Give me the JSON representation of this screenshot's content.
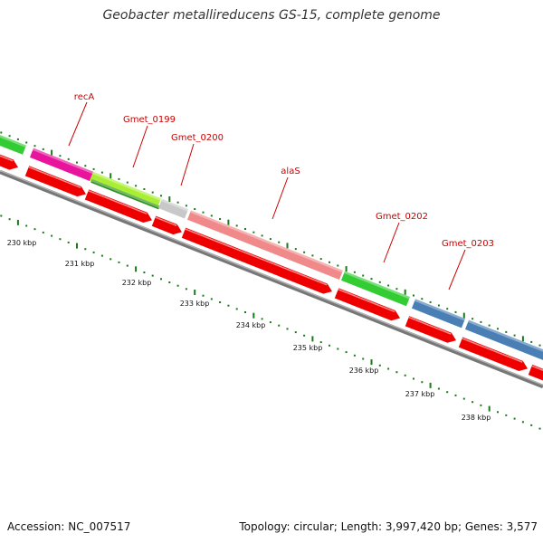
{
  "title": "Geobacter metallireducens GS-15, complete genome",
  "footer": {
    "accession": "Accession: NC_007517",
    "summary": "Topology: circular; Length: 3,997,420 bp; Genes: 3,577"
  },
  "colors": {
    "label": "#cc0000",
    "leader_line": "#cc0000",
    "backbone": "#888888",
    "tick": "#1a7a1a",
    "arrow_red": "#ee0000",
    "recA": "#e8149c",
    "Gmet_0199": "#aaee33",
    "Gmet_0200": "#c8c8c8",
    "alaS": "#f08a8a",
    "Gmet_0202": "#33cc33",
    "Gmet_0203": "#4a7fb5",
    "left_green": "#33cc33"
  },
  "ruler_labels": [
    "230 kbp",
    "231 kbp",
    "232 kbp",
    "233 kbp",
    "234 kbp",
    "235 kbp",
    "236 kbp",
    "237 kbp",
    "238 kbp"
  ],
  "genes": [
    {
      "id": "recA",
      "label": "recA"
    },
    {
      "id": "Gmet_0199",
      "label": "Gmet_0199"
    },
    {
      "id": "Gmet_0200",
      "label": "Gmet_0200"
    },
    {
      "id": "alaS",
      "label": "alaS"
    },
    {
      "id": "Gmet_0202",
      "label": "Gmet_0202"
    },
    {
      "id": "Gmet_0203",
      "label": "Gmet_0203"
    }
  ]
}
